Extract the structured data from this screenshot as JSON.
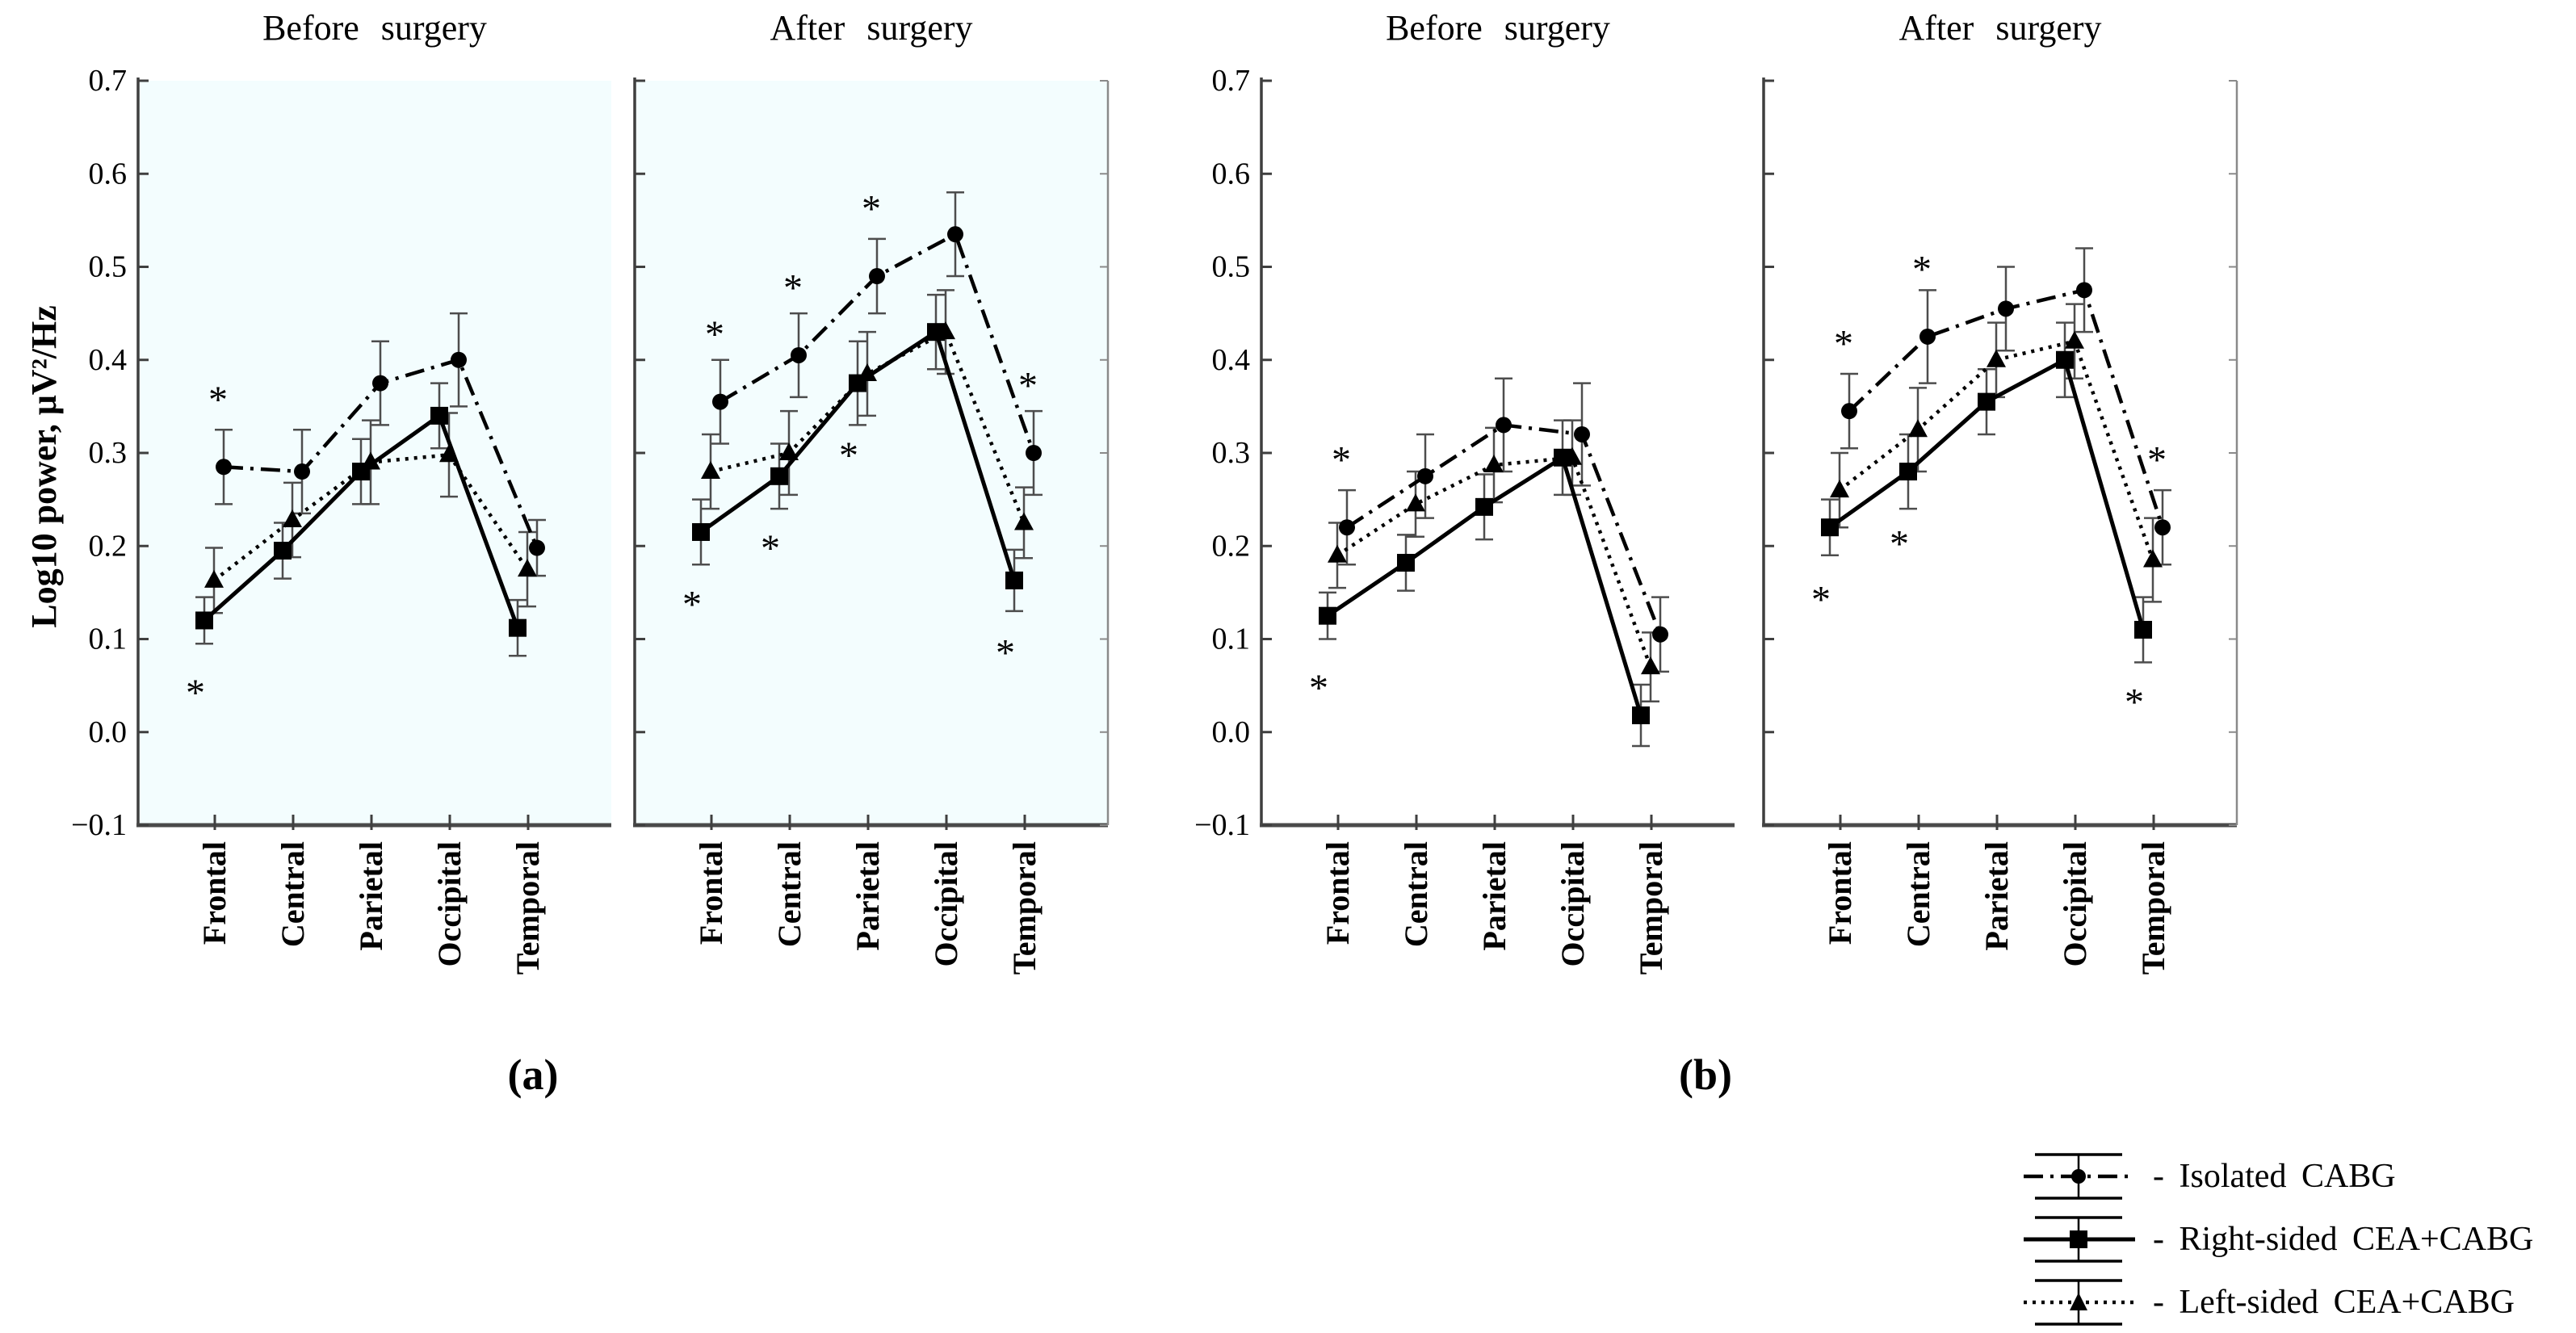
{
  "figure": {
    "y_axis_title": "Log10 power, μV²/Hz",
    "panel_a_label": "(a)",
    "panel_b_label": "(b)",
    "significance_symbol": "*"
  },
  "legend": {
    "position": "bottom-right",
    "items": [
      {
        "label": "- Isolated CABG",
        "marker": "circle",
        "line": "dashdot"
      },
      {
        "label": "- Right-sided CEA+CABG",
        "marker": "square",
        "line": "solid"
      },
      {
        "label": "- Left-sided CEA+CABG",
        "marker": "triangle",
        "line": "dotted"
      }
    ]
  },
  "chart_data": [
    {
      "type": "line",
      "panel": "(a)",
      "ylabel": "Log10 power, μV²/Hz",
      "ylim": [
        -0.1,
        0.7
      ],
      "yticks": [
        "0.7",
        "0.6",
        "0.5",
        "0.4",
        "0.3",
        "0.2",
        "0.1",
        "0.0",
        "−0.1"
      ],
      "categories": [
        "Frontal",
        "Central",
        "Parietal",
        "Occipital",
        "Temporal"
      ],
      "plot_bg": "#f3fdfe",
      "grid": false,
      "subplots": [
        {
          "title": "Before surgery",
          "series": [
            {
              "name": "Isolated CABG",
              "marker": "circle",
              "line": "dashdot",
              "values": [
                0.285,
                0.28,
                0.375,
                0.4,
                0.198
              ],
              "errors": [
                0.04,
                0.045,
                0.045,
                0.05,
                0.03
              ]
            },
            {
              "name": "Right-sided CEA+CABG",
              "marker": "square",
              "line": "solid",
              "values": [
                0.12,
                0.195,
                0.28,
                0.34,
                0.112
              ],
              "errors": [
                0.025,
                0.03,
                0.035,
                0.035,
                0.03
              ]
            },
            {
              "name": "Left-sided CEA+CABG",
              "marker": "triangle",
              "line": "dotted",
              "values": [
                0.163,
                0.228,
                0.29,
                0.298,
                0.175
              ],
              "errors": [
                0.035,
                0.04,
                0.045,
                0.045,
                0.04
              ]
            }
          ],
          "significance": {
            "above_isolated_cabg": [
              "Frontal"
            ],
            "below_right_sided": [
              "Frontal"
            ]
          }
        },
        {
          "title": "After surgery",
          "series": [
            {
              "name": "Isolated CABG",
              "marker": "circle",
              "line": "dashdot",
              "values": [
                0.355,
                0.405,
                0.49,
                0.535,
                0.3
              ],
              "errors": [
                0.045,
                0.045,
                0.04,
                0.045,
                0.045
              ]
            },
            {
              "name": "Right-sided CEA+CABG",
              "marker": "square",
              "line": "solid",
              "values": [
                0.215,
                0.275,
                0.375,
                0.43,
                0.163
              ],
              "errors": [
                0.035,
                0.035,
                0.045,
                0.04,
                0.033
              ]
            },
            {
              "name": "Left-sided CEA+CABG",
              "marker": "triangle",
              "line": "dotted",
              "values": [
                0.28,
                0.3,
                0.385,
                0.43,
                0.225
              ],
              "errors": [
                0.04,
                0.045,
                0.045,
                0.045,
                0.038
              ]
            }
          ],
          "significance": {
            "above_isolated_cabg": [
              "Frontal",
              "Central",
              "Parietal",
              "Temporal"
            ],
            "below_right_sided": [
              "Frontal",
              "Central",
              "Parietal",
              "Temporal"
            ]
          }
        }
      ]
    },
    {
      "type": "line",
      "panel": "(b)",
      "ylabel": "",
      "ylim": [
        -0.1,
        0.7
      ],
      "yticks": [
        "0.7",
        "0.6",
        "0.5",
        "0.4",
        "0.3",
        "0.2",
        "0.1",
        "0.0",
        "−0.1"
      ],
      "categories": [
        "Frontal",
        "Central",
        "Parietal",
        "Occipital",
        "Temporal"
      ],
      "plot_bg": "#ffffff",
      "grid": false,
      "subplots": [
        {
          "title": "Before surgery",
          "series": [
            {
              "name": "Isolated CABG",
              "marker": "circle",
              "line": "dashdot",
              "values": [
                0.22,
                0.275,
                0.33,
                0.32,
                0.105
              ],
              "errors": [
                0.04,
                0.045,
                0.05,
                0.055,
                0.04
              ]
            },
            {
              "name": "Right-sided CEA+CABG",
              "marker": "square",
              "line": "solid",
              "values": [
                0.125,
                0.182,
                0.242,
                0.295,
                0.018
              ],
              "errors": [
                0.025,
                0.03,
                0.035,
                0.04,
                0.033
              ]
            },
            {
              "name": "Left-sided CEA+CABG",
              "marker": "triangle",
              "line": "dotted",
              "values": [
                0.19,
                0.245,
                0.287,
                0.295,
                0.07
              ],
              "errors": [
                0.035,
                0.035,
                0.04,
                0.04,
                0.037
              ]
            }
          ],
          "significance": {
            "above_isolated_cabg": [
              "Frontal"
            ],
            "below_right_sided": [
              "Frontal"
            ]
          }
        },
        {
          "title": "After surgery",
          "series": [
            {
              "name": "Isolated CABG",
              "marker": "circle",
              "line": "dashdot",
              "values": [
                0.345,
                0.425,
                0.455,
                0.475,
                0.22
              ],
              "errors": [
                0.04,
                0.05,
                0.045,
                0.045,
                0.04
              ]
            },
            {
              "name": "Right-sided CEA+CABG",
              "marker": "square",
              "line": "solid",
              "values": [
                0.22,
                0.28,
                0.355,
                0.4,
                0.11
              ],
              "errors": [
                0.03,
                0.04,
                0.035,
                0.04,
                0.035
              ]
            },
            {
              "name": "Left-sided CEA+CABG",
              "marker": "triangle",
              "line": "dotted",
              "values": [
                0.26,
                0.325,
                0.4,
                0.42,
                0.185
              ],
              "errors": [
                0.04,
                0.045,
                0.04,
                0.04,
                0.045
              ]
            }
          ],
          "significance": {
            "above_isolated_cabg": [
              "Frontal",
              "Central",
              "Temporal"
            ],
            "below_right_sided": [
              "Frontal",
              "Central",
              "Temporal"
            ]
          }
        }
      ]
    }
  ]
}
